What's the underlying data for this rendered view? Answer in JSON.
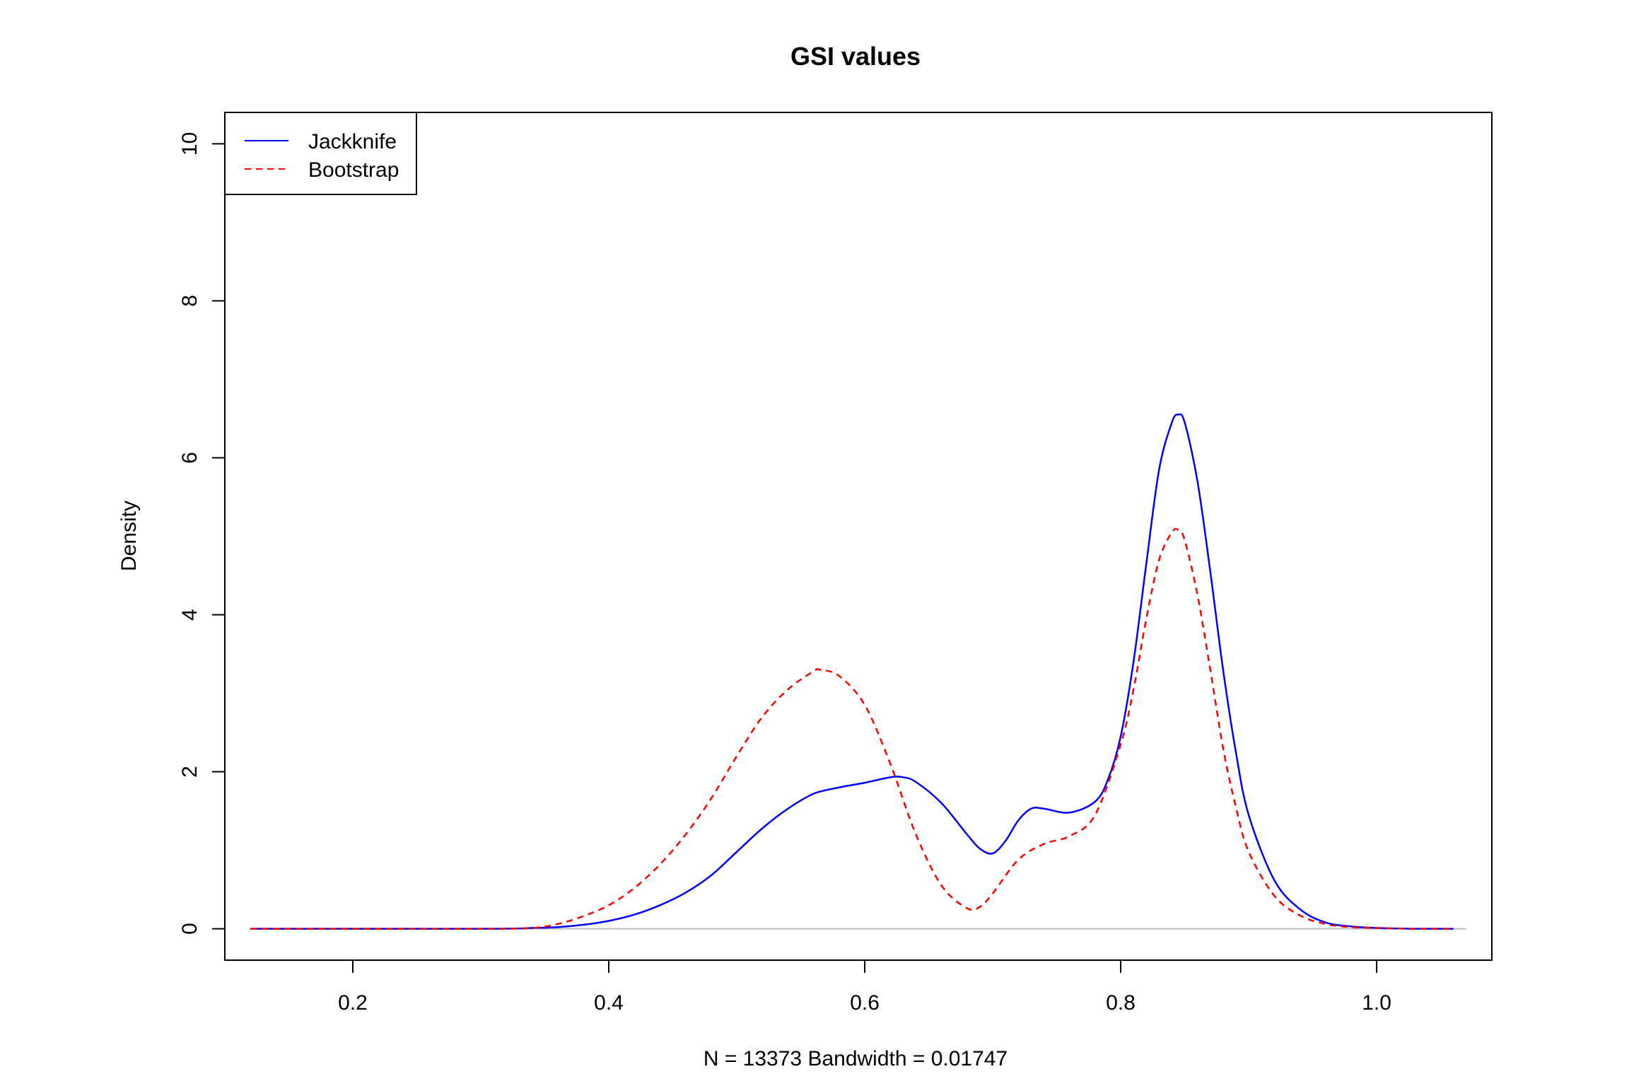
{
  "chart_data": {
    "type": "line",
    "title": "GSI values",
    "xlabel": "N = 13373   Bandwidth = 0.01747",
    "ylabel": "Density",
    "xlim": [
      0.1,
      1.09
    ],
    "ylim": [
      -0.4,
      10.4
    ],
    "xticks": [
      0.2,
      0.4,
      0.6,
      0.8,
      1.0
    ],
    "xtick_labels": [
      "0.2",
      "0.4",
      "0.6",
      "0.8",
      "1.0"
    ],
    "yticks": [
      0,
      2,
      4,
      6,
      8,
      10
    ],
    "ytick_labels": [
      "0",
      "2",
      "4",
      "6",
      "8",
      "10"
    ],
    "grid": false,
    "baseline": 0,
    "legend": {
      "position": "top-left"
    },
    "series": [
      {
        "name": "Jackknife",
        "color": "#0000FF",
        "style": "solid",
        "x": [
          0.12,
          0.3,
          0.34,
          0.36,
          0.38,
          0.4,
          0.42,
          0.44,
          0.46,
          0.48,
          0.5,
          0.52,
          0.54,
          0.56,
          0.58,
          0.6,
          0.62,
          0.63,
          0.64,
          0.66,
          0.68,
          0.69,
          0.7,
          0.71,
          0.72,
          0.73,
          0.74,
          0.76,
          0.78,
          0.79,
          0.8,
          0.81,
          0.82,
          0.83,
          0.84,
          0.845,
          0.85,
          0.86,
          0.87,
          0.88,
          0.89,
          0.9,
          0.92,
          0.94,
          0.96,
          0.98,
          1.0,
          1.03,
          1.06
        ],
        "y": [
          0,
          0,
          0.01,
          0.02,
          0.05,
          0.1,
          0.18,
          0.3,
          0.46,
          0.68,
          0.98,
          1.28,
          1.53,
          1.72,
          1.8,
          1.86,
          1.93,
          1.93,
          1.87,
          1.6,
          1.2,
          1.02,
          0.96,
          1.12,
          1.38,
          1.53,
          1.53,
          1.48,
          1.62,
          1.9,
          2.45,
          3.4,
          4.65,
          5.85,
          6.45,
          6.55,
          6.45,
          5.7,
          4.55,
          3.3,
          2.25,
          1.45,
          0.62,
          0.25,
          0.08,
          0.03,
          0.01,
          0,
          0
        ]
      },
      {
        "name": "Bootstrap",
        "color": "#FF0000",
        "style": "dashed",
        "x": [
          0.12,
          0.3,
          0.34,
          0.36,
          0.38,
          0.4,
          0.42,
          0.44,
          0.46,
          0.48,
          0.5,
          0.52,
          0.54,
          0.56,
          0.565,
          0.58,
          0.6,
          0.62,
          0.64,
          0.66,
          0.68,
          0.69,
          0.7,
          0.72,
          0.74,
          0.76,
          0.78,
          0.8,
          0.81,
          0.82,
          0.83,
          0.84,
          0.845,
          0.85,
          0.86,
          0.87,
          0.88,
          0.89,
          0.9,
          0.92,
          0.94,
          0.96,
          0.98,
          1.0,
          1.03,
          1.06
        ],
        "y": [
          0,
          0,
          0.01,
          0.06,
          0.16,
          0.3,
          0.52,
          0.82,
          1.2,
          1.66,
          2.2,
          2.7,
          3.05,
          3.28,
          3.3,
          3.22,
          2.85,
          2.1,
          1.2,
          0.55,
          0.26,
          0.28,
          0.45,
          0.88,
          1.08,
          1.18,
          1.45,
          2.35,
          3.05,
          3.95,
          4.7,
          5.05,
          5.08,
          4.95,
          4.25,
          3.3,
          2.3,
          1.55,
          0.98,
          0.42,
          0.17,
          0.06,
          0.02,
          0.01,
          0,
          0
        ]
      }
    ]
  }
}
